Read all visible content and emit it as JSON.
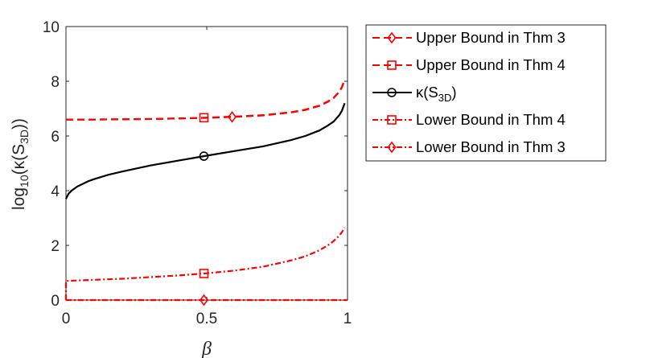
{
  "chart_data": {
    "type": "line",
    "xlabel": "β",
    "ylabel": {
      "prefix": "log",
      "sub1": "10",
      "mid": "(κ(S",
      "sub2": "3D",
      "suffix": "))"
    },
    "xlim": [
      0,
      1
    ],
    "ylim": [
      0,
      10
    ],
    "xticks": [
      0,
      0.5,
      1
    ],
    "xtick_labels": [
      "0",
      "0.5",
      "1"
    ],
    "yticks": [
      0,
      2,
      4,
      6,
      8,
      10
    ],
    "ytick_labels": [
      "0",
      "2",
      "4",
      "6",
      "8",
      "10"
    ],
    "grid": false,
    "legend_position": "outside-right",
    "series": [
      {
        "name": "Upper Bound in Thm 3",
        "name_parts": {
          "main": "Upper Bound in Thm 3"
        },
        "color": "#ff0000",
        "line": "dashed",
        "marker": "diamond",
        "markers_x": [
          0.59
        ],
        "x": [
          0,
          0.05,
          0.1,
          0.2,
          0.3,
          0.4,
          0.5,
          0.6,
          0.7,
          0.8,
          0.85,
          0.9,
          0.93,
          0.95,
          0.97,
          0.98,
          0.99
        ],
        "y": [
          6.6,
          6.6,
          6.6,
          6.61,
          6.62,
          6.64,
          6.66,
          6.7,
          6.75,
          6.86,
          6.95,
          7.1,
          7.25,
          7.38,
          7.6,
          7.78,
          8.05
        ]
      },
      {
        "name": "Upper Bound in Thm 4",
        "name_parts": {
          "main": "Upper Bound in Thm 4"
        },
        "color": "#ff0000",
        "line": "dashed",
        "marker": "square",
        "markers_x": [
          0.49
        ],
        "x": [
          0,
          0.05,
          0.1,
          0.2,
          0.3,
          0.4,
          0.5,
          0.6,
          0.7,
          0.8,
          0.85,
          0.9,
          0.93,
          0.95,
          0.97,
          0.98,
          0.99
        ],
        "y": [
          6.6,
          6.6,
          6.6,
          6.61,
          6.62,
          6.64,
          6.67,
          6.71,
          6.76,
          6.87,
          6.96,
          7.11,
          7.26,
          7.39,
          7.61,
          7.79,
          8.08
        ]
      },
      {
        "name": "κ(S3D)",
        "name_parts": {
          "main": "κ(S",
          "sub": "3D",
          "end": ")"
        },
        "color": "#000000",
        "line": "solid",
        "marker": "circle",
        "markers_x": [
          0.49
        ],
        "x": [
          0,
          0.005,
          0.01,
          0.02,
          0.04,
          0.06,
          0.08,
          0.1,
          0.15,
          0.2,
          0.3,
          0.4,
          0.5,
          0.6,
          0.7,
          0.8,
          0.85,
          0.9,
          0.93,
          0.95,
          0.97,
          0.98,
          0.99
        ],
        "y": [
          3.7,
          3.8,
          3.9,
          4.0,
          4.15,
          4.25,
          4.35,
          4.42,
          4.58,
          4.7,
          4.92,
          5.1,
          5.28,
          5.45,
          5.62,
          5.85,
          6.0,
          6.2,
          6.38,
          6.52,
          6.75,
          6.92,
          7.2
        ]
      },
      {
        "name": "Lower Bound in Thm 4",
        "name_parts": {
          "main": "Lower Bound in Thm 4"
        },
        "color": "#ff0000",
        "line": "dashdot",
        "marker": "square",
        "markers_x": [
          0.49
        ],
        "x": [
          0,
          0.0,
          0.05,
          0.1,
          0.2,
          0.3,
          0.4,
          0.5,
          0.6,
          0.7,
          0.8,
          0.85,
          0.9,
          0.93,
          0.95,
          0.97,
          0.98,
          0.99
        ],
        "y": [
          0.0,
          0.7,
          0.72,
          0.74,
          0.78,
          0.84,
          0.9,
          0.98,
          1.08,
          1.22,
          1.45,
          1.6,
          1.82,
          2.0,
          2.15,
          2.35,
          2.48,
          2.65
        ]
      },
      {
        "name": "Lower Bound in Thm 3",
        "name_parts": {
          "main": "Lower Bound in Thm 3"
        },
        "color": "#ff0000",
        "line": "dashdot",
        "marker": "diamond",
        "markers_x": [
          0.49
        ],
        "x": [
          0,
          0.25,
          0.5,
          0.75,
          1.0
        ],
        "y": [
          0.0,
          0.0,
          0.0,
          0.0,
          0.0
        ]
      }
    ]
  }
}
